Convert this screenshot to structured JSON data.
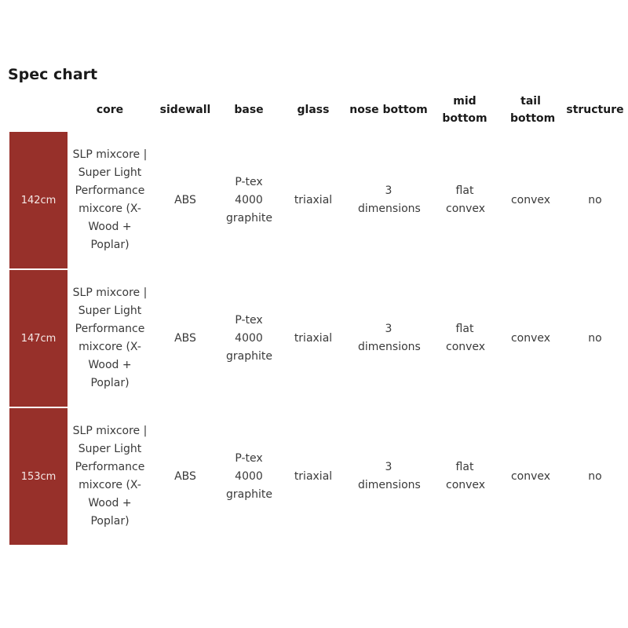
{
  "title": "Spec chart",
  "headers": [
    "",
    "core",
    "sidewall",
    "base",
    "glass",
    "nose bottom",
    "mid bottom",
    "tail bottom",
    "structure"
  ],
  "rows": [
    {
      "size": "142cm",
      "core": "SLP mixcore | Super Light Performance mixcore (X-Wood + Poplar)",
      "sidewall": "ABS",
      "base": "P-tex 4000 graphite",
      "glass": "triaxial",
      "nose_bottom": "3 dimensions",
      "mid_bottom": "flat convex",
      "tail_bottom": "convex",
      "structure": "no"
    },
    {
      "size": "147cm",
      "core": "SLP mixcore | Super Light Performance mixcore (X-Wood + Poplar)",
      "sidewall": "ABS",
      "base": "P-tex 4000 graphite",
      "glass": "triaxial",
      "nose_bottom": "3 dimensions",
      "mid_bottom": "flat convex",
      "tail_bottom": "convex",
      "structure": "no"
    },
    {
      "size": "153cm",
      "core": "SLP mixcore | Super Light Performance mixcore (X-Wood + Poplar)",
      "sidewall": "ABS",
      "base": "P-tex 4000 graphite",
      "glass": "triaxial",
      "nose_bottom": "3 dimensions",
      "mid_bottom": "flat convex",
      "tail_bottom": "convex",
      "structure": "no"
    }
  ],
  "colors": {
    "size_cell_bg": "#97302a",
    "size_cell_text": "#f4e8e6",
    "title_text": "#1a1a1a",
    "body_text": "#3a3a3a"
  }
}
